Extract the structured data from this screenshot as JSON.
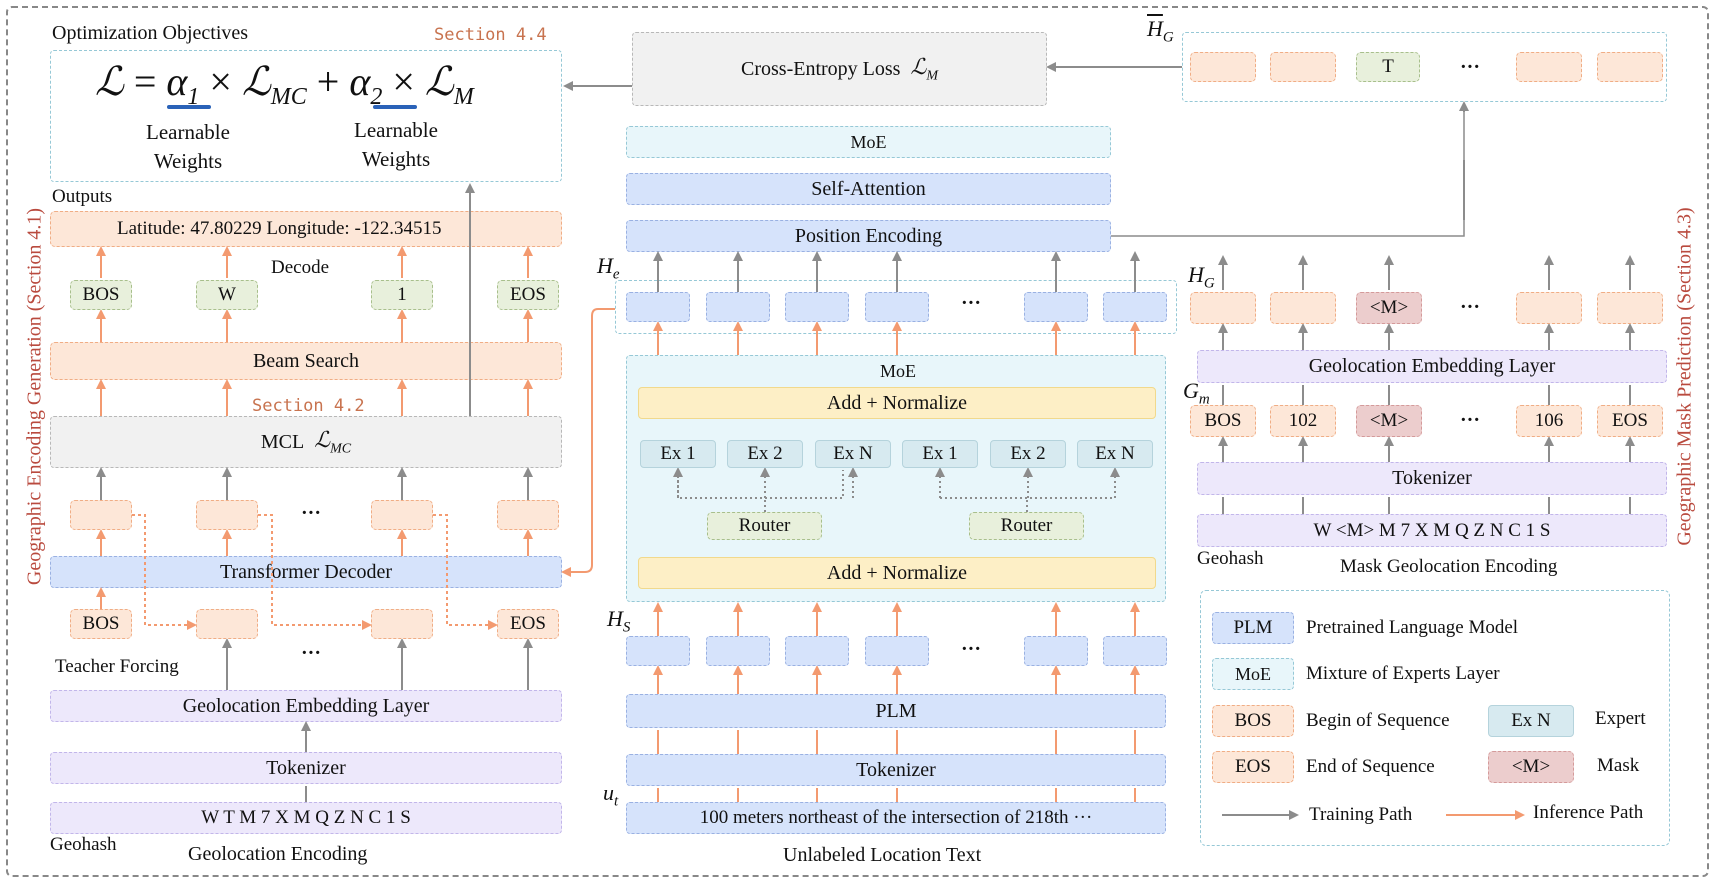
{
  "sections": {
    "geo_gen_vertical": "Geographic Encoding Generation (Section 4.1)",
    "mask_pred_vertical": "Geographic Mask Prediction (Section 4.3)",
    "sec44": "Section 4.4",
    "sec42": "Section 4.2"
  },
  "objectives": {
    "title": "Optimization Objectives",
    "loss_L": "ℒ",
    "eq": "=",
    "alpha": "α",
    "sub1": "1",
    "sub2": "2",
    "times": "×",
    "plus": "+",
    "L_MC": "ℒ",
    "L_MC_sub": "MC",
    "L_M": "ℒ",
    "L_M_sub": "M",
    "weights1_line1": "Learnable",
    "weights1_line2": "Weights",
    "weights2_line1": "Learnable",
    "weights2_line2": "Weights"
  },
  "cross_entropy": {
    "label": "Cross-Entropy Loss",
    "sym": "ℒ",
    "sub": "M"
  },
  "left": {
    "outputs_label": "Outputs",
    "outputs_value": "Latitude: 47.80229   Longitude: -122.34515",
    "decode_label": "Decode",
    "decode_tokens": [
      "BOS",
      "W",
      "1",
      "EOS"
    ],
    "beam_search": "Beam Search",
    "mcl_label": "MCL",
    "mcl_sym": "ℒ",
    "mcl_sub": "MC",
    "ellipsis": "···",
    "transformer_decoder": "Transformer Decoder",
    "tf_bos": "BOS",
    "tf_eos": "EOS",
    "teacher_forcing": "Teacher Forcing",
    "geo_embed": "Geolocation Embedding Layer",
    "tokenizer": "Tokenizer",
    "geohash_value": "W  T  M  7  X  M  Q  Z  N  C  1  S",
    "geohash_label": "Geohash",
    "caption": "Geolocation Encoding"
  },
  "middle": {
    "he": "H",
    "he_sub": "e",
    "hs": "H",
    "hs_sub": "S",
    "ut": "u",
    "ut_sub": "t",
    "moe_top": "MoE",
    "self_attention": "Self-Attention",
    "position_encoding": "Position Encoding",
    "moe_block": "MoE",
    "add_norm_top": "Add + Normalize",
    "add_norm_bottom": "Add + Normalize",
    "experts": [
      "Ex 1",
      "Ex 2",
      "Ex N",
      "Ex 1",
      "Ex 2",
      "Ex N"
    ],
    "router1": "Router",
    "router2": "Router",
    "ellipsis": "···",
    "plm": "PLM",
    "tokenizer": "Tokenizer",
    "input_text": "100 meters northeast of the intersection of 218th ···",
    "caption": "Unlabeled Location Text"
  },
  "right": {
    "hg_bar": "H",
    "hg_bar_sub": "G",
    "top_tokens": [
      "",
      "",
      "T",
      "···",
      "",
      ""
    ],
    "hg": "H",
    "hg_sub": "G",
    "mid_tokens": [
      "",
      "",
      "<M>",
      "···",
      "",
      ""
    ],
    "geo_embed": "Geolocation Embedding Layer",
    "gm": "G",
    "gm_sub": "m",
    "gm_tokens": [
      "BOS",
      "102",
      "<M>",
      "···",
      "106",
      "EOS"
    ],
    "tokenizer": "Tokenizer",
    "masked_value": "W  <M>  M  7  X  M  Q  Z  N  C  1  S",
    "geohash_label": "Geohash",
    "caption": "Mask Geolocation Encoding"
  },
  "legend": {
    "plm_key": "PLM",
    "plm_desc": "Pretrained Language Model",
    "moe_key": "MoE",
    "moe_desc": "Mixture of Experts Layer",
    "bos_key": "BOS",
    "bos_desc": "Begin of Sequence",
    "exn_key": "Ex N",
    "exn_desc": "Expert",
    "eos_key": "EOS",
    "eos_desc": "End of Sequence",
    "mask_key": "<M>",
    "mask_desc": "Mask",
    "training": "Training Path",
    "inference": "Inference Path"
  },
  "colors": {
    "gray_arrow": "#8c8c8c",
    "orange_arrow": "#f39a70",
    "section_text": "#c8734f",
    "vertical_text": "#b94a3e",
    "underline": "#2a62b8"
  }
}
